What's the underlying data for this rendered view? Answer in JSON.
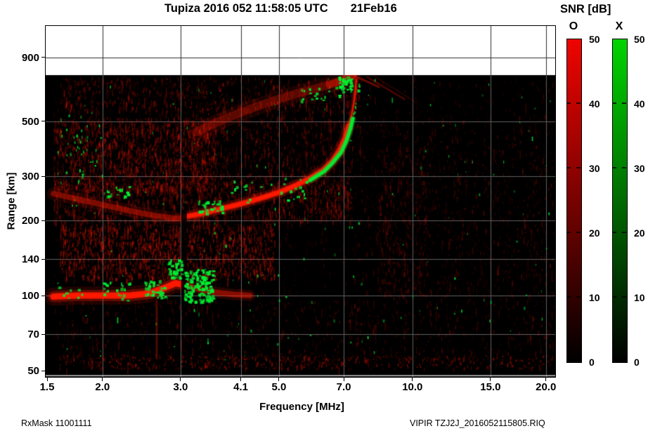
{
  "title": "Tupiza 2016 052 11:58:05 UTC       21Feb16",
  "footer": {
    "left": "RxMask 11001111",
    "right": "VIPIR  TZJ2J_2016052115805.RIQ"
  },
  "legend": {
    "title": "SNR [dB]",
    "o_label": "O",
    "x_label": "X",
    "ticks": [
      50,
      40,
      30,
      20,
      10,
      0
    ],
    "o_color": "#ef0400",
    "x_color": "#00d400",
    "bottom_color": "#000000"
  },
  "colors": {
    "plot_background": "#000000",
    "page_background": "#ffffff",
    "grid_dark": "#2e2e2e",
    "grid_on_data": "#616161",
    "o_trace": "255,25,0",
    "x_trace": "0,240,50"
  },
  "chart_data": {
    "type": "heatmap",
    "title": "Tupiza 2016 052 11:58:05 UTC 21Feb16",
    "station": "Tupiza",
    "timestamp_utc": "2016 052 11:58:05 UTC",
    "date": "21Feb16",
    "xlabel": "Frequency [MHz]",
    "ylabel": "Range [km]",
    "x_scale": "log",
    "y_scale": "log",
    "xlim": [
      1.47,
      21.0
    ],
    "ylim": [
      43,
      1280
    ],
    "x_ticks": [
      1.5,
      2.0,
      3.0,
      4.1,
      5.0,
      7.0,
      10.0,
      15.0,
      20.0
    ],
    "x_tick_labels": [
      "1.5",
      "2.0",
      "3.0",
      "4.1",
      "5.0",
      "7.0",
      "10.0",
      "15.0",
      "20.0"
    ],
    "y_ticks": [
      50,
      70,
      100,
      140,
      200,
      300,
      500,
      900
    ],
    "y_grid": [
      70,
      100,
      140,
      200,
      300,
      500,
      900
    ],
    "data_max_range_km": 765,
    "snr_scale_db": [
      0,
      50
    ],
    "seed": 12345,
    "traces": [
      {
        "name": "E-layer O-mode",
        "mode": "O",
        "points": [
          [
            1.55,
            99
          ],
          [
            1.75,
            100
          ],
          [
            2.0,
            100
          ],
          [
            2.3,
            100
          ],
          [
            2.55,
            102
          ],
          [
            2.75,
            107
          ],
          [
            2.92,
            112
          ],
          [
            3.0,
            111
          ]
        ],
        "strokes": [
          [
            26,
            0.12
          ],
          [
            16,
            0.3
          ],
          [
            9,
            0.95
          ],
          [
            4,
            1.0
          ]
        ]
      },
      {
        "name": "E-layer tail O-mode",
        "mode": "O",
        "points": [
          [
            3.08,
            110
          ],
          [
            3.3,
            106
          ],
          [
            3.6,
            103
          ],
          [
            3.95,
            101
          ],
          [
            4.3,
            100
          ]
        ],
        "strokes": [
          [
            16,
            0.15
          ],
          [
            8,
            0.45
          ]
        ]
      },
      {
        "name": "F diffuse O-mode",
        "mode": "O",
        "points": [
          [
            1.55,
            256
          ],
          [
            1.8,
            241
          ],
          [
            2.05,
            229
          ],
          [
            2.35,
            217
          ],
          [
            2.62,
            209
          ],
          [
            2.85,
            205
          ],
          [
            2.99,
            204
          ]
        ],
        "strokes": [
          [
            18,
            0.12
          ],
          [
            8,
            0.4
          ]
        ]
      },
      {
        "name": "F trace O-mode",
        "mode": "O",
        "points": [
          [
            3.06,
            207
          ],
          [
            3.3,
            212
          ],
          [
            3.6,
            220
          ],
          [
            4.1,
            233
          ],
          [
            4.6,
            247
          ],
          [
            5.0,
            259
          ],
          [
            5.45,
            276
          ],
          [
            5.9,
            296
          ],
          [
            6.3,
            319
          ],
          [
            6.6,
            346
          ],
          [
            6.85,
            382
          ],
          [
            7.05,
            428
          ],
          [
            7.18,
            478
          ]
        ],
        "strokes": [
          [
            16,
            0.22
          ],
          [
            9,
            0.6
          ],
          [
            5.5,
            1.0
          ]
        ]
      },
      {
        "name": "F asymptote O-mode",
        "mode": "O",
        "points": [
          [
            7.18,
            478
          ],
          [
            7.3,
            535
          ],
          [
            7.38,
            595
          ],
          [
            7.44,
            665
          ],
          [
            7.47,
            735
          ]
        ],
        "strokes": [
          [
            7,
            0.25
          ],
          [
            2.5,
            0.85
          ]
        ]
      },
      {
        "name": "2F multihop diffuse O-mode",
        "mode": "O",
        "points": [
          [
            3.25,
            452
          ],
          [
            3.6,
            492
          ],
          [
            4.1,
            542
          ],
          [
            4.6,
            583
          ],
          [
            5.0,
            613
          ],
          [
            5.5,
            646
          ],
          [
            6.0,
            673
          ],
          [
            6.45,
            699
          ],
          [
            6.85,
            724
          ],
          [
            7.15,
            747
          ],
          [
            7.32,
            760
          ]
        ],
        "strokes": [
          [
            24,
            0.1
          ],
          [
            12,
            0.28
          ]
        ]
      },
      {
        "name": "2F end bright O-mode",
        "mode": "O",
        "points": [
          [
            6.5,
            700
          ],
          [
            6.9,
            726
          ],
          [
            7.2,
            750
          ],
          [
            7.35,
            762
          ]
        ],
        "strokes": [
          [
            10,
            0.4
          ]
        ]
      },
      {
        "name": "diagonal streak 1",
        "mode": "O",
        "points": [
          [
            7.42,
            758
          ],
          [
            8.4,
            686
          ]
        ],
        "strokes": [
          [
            3,
            0.4
          ]
        ]
      },
      {
        "name": "diagonal streak 2",
        "mode": "O",
        "points": [
          [
            7.9,
            752
          ],
          [
            9.6,
            612
          ]
        ],
        "strokes": [
          [
            2.5,
            0.28
          ]
        ]
      },
      {
        "name": "diagonal streak 3",
        "mode": "O",
        "points": [
          [
            8.2,
            757
          ],
          [
            10.15,
            598
          ]
        ],
        "strokes": [
          [
            2,
            0.15
          ]
        ]
      },
      {
        "name": "rfi column",
        "mode": "O",
        "points": [
          [
            2.65,
            95
          ],
          [
            2.65,
            56
          ]
        ],
        "strokes": [
          [
            3,
            0.3
          ]
        ]
      },
      {
        "name": "F trace X-mode",
        "mode": "X",
        "points": [
          [
            5.9,
            291
          ],
          [
            6.3,
            313
          ],
          [
            6.6,
            340
          ],
          [
            6.9,
            374
          ],
          [
            7.1,
            417
          ],
          [
            7.25,
            467
          ],
          [
            7.34,
            512
          ]
        ],
        "strokes": [
          [
            9,
            0.3
          ],
          [
            5,
            0.95
          ]
        ]
      },
      {
        "name": "F X-mode upper dotted",
        "mode": "X",
        "style": "dotted",
        "points": [
          [
            7.34,
            512
          ],
          [
            7.44,
            572
          ],
          [
            7.53,
            640
          ],
          [
            7.6,
            715
          ]
        ]
      },
      {
        "name": "F X-mode lower dotted",
        "mode": "X",
        "style": "dotted",
        "points": [
          [
            5.3,
            261
          ],
          [
            5.6,
            272
          ],
          [
            5.9,
            291
          ]
        ]
      }
    ],
    "x_patches": [
      {
        "f": [
          2.0,
          2.3
        ],
        "km": [
          96,
          114
        ],
        "n": 22
      },
      {
        "f": [
          2.48,
          2.76
        ],
        "km": [
          98,
          116
        ],
        "n": 40
      },
      {
        "f": [
          2.8,
          3.02
        ],
        "km": [
          118,
          140
        ],
        "n": 35
      },
      {
        "f": [
          3.05,
          3.55
        ],
        "km": [
          95,
          128
        ],
        "n": 150
      },
      {
        "f": [
          3.28,
          3.72
        ],
        "km": [
          213,
          243
        ],
        "n": 30
      },
      {
        "f": [
          2.03,
          2.3
        ],
        "km": [
          248,
          275
        ],
        "n": 15
      },
      {
        "f": [
          6.8,
          7.3
        ],
        "km": [
          650,
          757
        ],
        "n": 40
      },
      {
        "f": [
          5.5,
          6.9
        ],
        "km": [
          605,
          700
        ],
        "n": 20
      },
      {
        "f": [
          3.8,
          5.7
        ],
        "km": [
          238,
          300
        ],
        "n": 22
      },
      {
        "f": [
          1.57,
          1.8
        ],
        "km": [
          95,
          110
        ],
        "n": 8
      }
    ],
    "noise_regions": [
      {
        "name": "background",
        "f": [
          1.55,
          20.8
        ],
        "km": [
          52,
          750
        ],
        "n": 2200,
        "a": [
          0.03,
          0.14
        ],
        "c": "o",
        "s": 6
      },
      {
        "name": "left-mid",
        "f": [
          1.55,
          3.6
        ],
        "km": [
          265,
          520
        ],
        "n": 1700,
        "a": [
          0.08,
          0.3
        ],
        "c": "o",
        "s": 7
      },
      {
        "name": "above-E",
        "f": [
          1.6,
          4.9
        ],
        "km": [
          116,
          196
        ],
        "n": 1500,
        "a": [
          0.1,
          0.38
        ],
        "c": "o",
        "s": 7
      },
      {
        "name": "F-band",
        "f": [
          1.55,
          7.3
        ],
        "km": [
          198,
          292
        ],
        "n": 1300,
        "a": [
          0.08,
          0.3
        ],
        "c": "o",
        "s": 7
      },
      {
        "name": "above-F",
        "f": [
          2.9,
          7.35
        ],
        "km": [
          292,
          540
        ],
        "n": 650,
        "a": [
          0.06,
          0.26
        ],
        "c": "o",
        "s": 7
      },
      {
        "name": "top-band",
        "f": [
          1.6,
          7.6
        ],
        "km": [
          545,
          758
        ],
        "n": 850,
        "a": [
          0.06,
          0.26
        ],
        "c": "o",
        "s": 6
      },
      {
        "name": "right-side",
        "f": [
          7.4,
          20.7
        ],
        "km": [
          55,
          530
        ],
        "n": 1100,
        "a": [
          0.04,
          0.2
        ],
        "c": "o",
        "s": 6
      },
      {
        "name": "right-mid",
        "f": [
          8.3,
          10.8
        ],
        "km": [
          100,
          400
        ],
        "n": 350,
        "a": [
          0.05,
          0.2
        ],
        "c": "o",
        "s": 6
      },
      {
        "name": "below-E",
        "f": [
          1.6,
          8.2
        ],
        "km": [
          52,
          96
        ],
        "n": 450,
        "a": [
          0.05,
          0.22
        ],
        "c": "o",
        "s": 6
      },
      {
        "name": "bottom-row",
        "f": [
          1.6,
          20.5
        ],
        "km": [
          51,
          58
        ],
        "n": 500,
        "a": [
          0.08,
          0.4
        ],
        "c": "o",
        "s": 3
      },
      {
        "name": "green-sparse",
        "f": [
          1.55,
          20.5
        ],
        "km": [
          55,
          750
        ],
        "n": 160,
        "a": [
          0.35,
          0.85
        ],
        "c": "x",
        "s": 3
      },
      {
        "name": "green-left-column",
        "f": [
          1.58,
          2.0
        ],
        "km": [
          285,
          545
        ],
        "n": 45,
        "a": [
          0.45,
          0.95
        ],
        "c": "x",
        "s": 3
      }
    ],
    "notches": [
      {
        "f": [
          3.01,
          3.1
        ],
        "km": [
          88,
          218
        ],
        "alpha": 0.88
      }
    ]
  }
}
